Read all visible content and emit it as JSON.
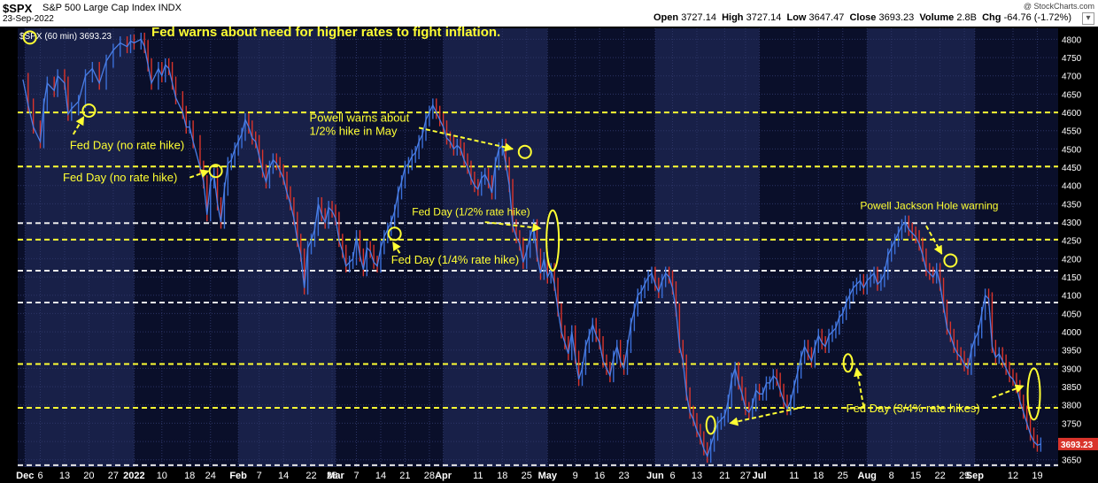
{
  "header": {
    "symbol": "$SPX",
    "name": "S&P 500 Large Cap Index  INDX",
    "date": "23-Sep-2022",
    "credit": "@ StockCharts.com",
    "open_label": "Open",
    "open": "3727.14",
    "high_label": "High",
    "high": "3727.14",
    "low_label": "Low",
    "low": "3647.47",
    "close_label": "Close",
    "close": "3693.23",
    "volume_label": "Volume",
    "volume": "2.8B",
    "chg_label": "Chg",
    "chg": "-64.76 (-1.72%)",
    "menu_icon": "dropdown-arrow-icon"
  },
  "chart_data": {
    "type": "line",
    "series_label": "$SPX (60 min) 3693.23",
    "last_value_label": "3693.23",
    "ylim": [
      3630,
      4830
    ],
    "y_ticks": [
      3650,
      3700,
      3750,
      3800,
      3850,
      3900,
      3950,
      4000,
      4050,
      4100,
      4150,
      4200,
      4250,
      4300,
      4350,
      4400,
      4450,
      4500,
      4550,
      4600,
      4650,
      4700,
      4750,
      4800
    ],
    "x_ticks": [
      {
        "label": "Dec",
        "t": 0.6,
        "bold": true
      },
      {
        "label": "6",
        "t": 5
      },
      {
        "label": "13",
        "t": 12
      },
      {
        "label": "20",
        "t": 19
      },
      {
        "label": "27",
        "t": 26
      },
      {
        "label": "2022",
        "t": 32,
        "bold": true
      },
      {
        "label": "10",
        "t": 40
      },
      {
        "label": "18",
        "t": 48
      },
      {
        "label": "24",
        "t": 54
      },
      {
        "label": "Feb",
        "t": 62,
        "bold": true
      },
      {
        "label": "7",
        "t": 68
      },
      {
        "label": "14",
        "t": 75
      },
      {
        "label": "22",
        "t": 83
      },
      {
        "label": "28",
        "t": 89
      },
      {
        "label": "Mar",
        "t": 90,
        "bold": true
      },
      {
        "label": "7",
        "t": 96
      },
      {
        "label": "14",
        "t": 103
      },
      {
        "label": "21",
        "t": 110
      },
      {
        "label": "28",
        "t": 117
      },
      {
        "label": "Apr",
        "t": 121,
        "bold": true
      },
      {
        "label": "11",
        "t": 131
      },
      {
        "label": "18",
        "t": 138
      },
      {
        "label": "25",
        "t": 145
      },
      {
        "label": "May",
        "t": 151,
        "bold": true
      },
      {
        "label": "9",
        "t": 159
      },
      {
        "label": "16",
        "t": 166
      },
      {
        "label": "23",
        "t": 173
      },
      {
        "label": "Jun",
        "t": 182,
        "bold": true
      },
      {
        "label": "6",
        "t": 187
      },
      {
        "label": "13",
        "t": 194
      },
      {
        "label": "21",
        "t": 202
      },
      {
        "label": "27",
        "t": 208
      },
      {
        "label": "Jul",
        "t": 212,
        "bold": true
      },
      {
        "label": "11",
        "t": 222
      },
      {
        "label": "18",
        "t": 229
      },
      {
        "label": "25",
        "t": 236
      },
      {
        "label": "Aug",
        "t": 243,
        "bold": true
      },
      {
        "label": "8",
        "t": 250
      },
      {
        "label": "15",
        "t": 257
      },
      {
        "label": "22",
        "t": 264
      },
      {
        "label": "29",
        "t": 271
      },
      {
        "label": "Sep",
        "t": 274,
        "bold": true
      },
      {
        "label": "12",
        "t": 285
      },
      {
        "label": "19",
        "t": 292
      }
    ],
    "t_range": [
      -1.5,
      298
    ],
    "month_bands": [
      [
        0.6,
        32
      ],
      [
        62,
        90
      ],
      [
        121,
        151
      ],
      [
        182,
        212
      ],
      [
        243,
        274
      ]
    ],
    "hlines": [
      4600,
      4452,
      4297,
      4252,
      4167,
      4080,
      3912,
      3792,
      3635
    ],
    "points": [
      [
        0,
        4690
      ],
      [
        1.5,
        4620
      ],
      [
        3,
        4560
      ],
      [
        5,
        4520
      ],
      [
        6,
        4620
      ],
      [
        7,
        4680
      ],
      [
        9,
        4660
      ],
      [
        10,
        4700
      ],
      [
        12,
        4680
      ],
      [
        13,
        4595
      ],
      [
        14,
        4610
      ],
      [
        16,
        4630
      ],
      [
        18,
        4700
      ],
      [
        20,
        4720
      ],
      [
        22,
        4680
      ],
      [
        24,
        4740
      ],
      [
        26,
        4770
      ],
      [
        28,
        4790
      ],
      [
        30,
        4780
      ],
      [
        31,
        4795
      ],
      [
        32,
        4790
      ],
      [
        34,
        4800
      ],
      [
        35,
        4780
      ],
      [
        36,
        4730
      ],
      [
        37,
        4680
      ],
      [
        39,
        4720
      ],
      [
        40,
        4700
      ],
      [
        41,
        4730
      ],
      [
        42,
        4720
      ],
      [
        43,
        4680
      ],
      [
        44,
        4640
      ],
      [
        46,
        4600
      ],
      [
        47,
        4560
      ],
      [
        48,
        4560
      ],
      [
        49,
        4520
      ],
      [
        51,
        4450
      ],
      [
        52,
        4410
      ],
      [
        53,
        4320
      ],
      [
        54,
        4410
      ],
      [
        55,
        4430
      ],
      [
        56,
        4350
      ],
      [
        57,
        4300
      ],
      [
        58,
        4390
      ],
      [
        59,
        4460
      ],
      [
        60,
        4470
      ],
      [
        61,
        4500
      ],
      [
        62,
        4520
      ],
      [
        63,
        4540
      ],
      [
        64,
        4580
      ],
      [
        65,
        4560
      ],
      [
        66,
        4530
      ],
      [
        67,
        4520
      ],
      [
        68,
        4480
      ],
      [
        69,
        4440
      ],
      [
        70,
        4410
      ],
      [
        71,
        4450
      ],
      [
        72,
        4470
      ],
      [
        73,
        4460
      ],
      [
        74,
        4440
      ],
      [
        75,
        4420
      ],
      [
        76,
        4380
      ],
      [
        77,
        4350
      ],
      [
        78,
        4310
      ],
      [
        79,
        4250
      ],
      [
        80,
        4210
      ],
      [
        81,
        4120
      ],
      [
        82,
        4230
      ],
      [
        83,
        4250
      ],
      [
        84,
        4280
      ],
      [
        85,
        4350
      ],
      [
        86,
        4320
      ],
      [
        87,
        4300
      ],
      [
        88,
        4340
      ],
      [
        89,
        4330
      ],
      [
        90,
        4310
      ],
      [
        91,
        4250
      ],
      [
        92,
        4220
      ],
      [
        93,
        4180
      ],
      [
        94,
        4190
      ],
      [
        95,
        4200
      ],
      [
        96,
        4260
      ],
      [
        97,
        4210
      ],
      [
        98,
        4170
      ],
      [
        99,
        4230
      ],
      [
        100,
        4220
      ],
      [
        101,
        4190
      ],
      [
        102,
        4180
      ],
      [
        103,
        4230
      ],
      [
        104,
        4260
      ],
      [
        105,
        4280
      ],
      [
        106,
        4300
      ],
      [
        107,
        4330
      ],
      [
        108,
        4380
      ],
      [
        109,
        4410
      ],
      [
        110,
        4450
      ],
      [
        111,
        4460
      ],
      [
        112,
        4480
      ],
      [
        113,
        4490
      ],
      [
        114,
        4520
      ],
      [
        115,
        4540
      ],
      [
        116,
        4580
      ],
      [
        117,
        4600
      ],
      [
        118,
        4620
      ],
      [
        119,
        4600
      ],
      [
        120,
        4580
      ],
      [
        121,
        4560
      ],
      [
        122,
        4530
      ],
      [
        123,
        4520
      ],
      [
        124,
        4500
      ],
      [
        125,
        4510
      ],
      [
        126,
        4500
      ],
      [
        127,
        4470
      ],
      [
        128,
        4450
      ],
      [
        129,
        4420
      ],
      [
        130,
        4400
      ],
      [
        131,
        4390
      ],
      [
        132,
        4420
      ],
      [
        133,
        4430
      ],
      [
        134,
        4410
      ],
      [
        135,
        4380
      ],
      [
        136,
        4460
      ],
      [
        137,
        4500
      ],
      [
        138,
        4510
      ],
      [
        139,
        4460
      ],
      [
        140,
        4400
      ],
      [
        141,
        4290
      ],
      [
        142,
        4260
      ],
      [
        143,
        4240
      ],
      [
        144,
        4190
      ],
      [
        145,
        4220
      ],
      [
        146,
        4260
      ],
      [
        147,
        4290
      ],
      [
        148,
        4210
      ],
      [
        149,
        4160
      ],
      [
        150,
        4200
      ],
      [
        151,
        4150
      ],
      [
        152,
        4170
      ],
      [
        153,
        4130
      ],
      [
        154,
        4060
      ],
      [
        155,
        4000
      ],
      [
        156,
        3970
      ],
      [
        157,
        3940
      ],
      [
        158,
        4000
      ],
      [
        159,
        3930
      ],
      [
        160,
        3870
      ],
      [
        161,
        3900
      ],
      [
        162,
        3960
      ],
      [
        163,
        3990
      ],
      [
        164,
        4020
      ],
      [
        165,
        3990
      ],
      [
        166,
        3970
      ],
      [
        167,
        3920
      ],
      [
        168,
        3900
      ],
      [
        169,
        3880
      ],
      [
        170,
        3930
      ],
      [
        171,
        3960
      ],
      [
        172,
        3920
      ],
      [
        173,
        3900
      ],
      [
        174,
        3960
      ],
      [
        175,
        4020
      ],
      [
        176,
        4060
      ],
      [
        177,
        4100
      ],
      [
        178,
        4110
      ],
      [
        179,
        4130
      ],
      [
        180,
        4150
      ],
      [
        181,
        4160
      ],
      [
        182,
        4130
      ],
      [
        183,
        4110
      ],
      [
        184,
        4140
      ],
      [
        185,
        4160
      ],
      [
        186,
        4150
      ],
      [
        187,
        4120
      ],
      [
        188,
        4060
      ],
      [
        189,
        3960
      ],
      [
        190,
        3920
      ],
      [
        191,
        3830
      ],
      [
        192,
        3780
      ],
      [
        193,
        3760
      ],
      [
        194,
        3730
      ],
      [
        195,
        3710
      ],
      [
        196,
        3680
      ],
      [
        197,
        3660
      ],
      [
        198,
        3690
      ],
      [
        199,
        3720
      ],
      [
        200,
        3750
      ],
      [
        201,
        3760
      ],
      [
        202,
        3770
      ],
      [
        203,
        3810
      ],
      [
        204,
        3870
      ],
      [
        205,
        3900
      ],
      [
        206,
        3860
      ],
      [
        207,
        3830
      ],
      [
        208,
        3790
      ],
      [
        209,
        3780
      ],
      [
        210,
        3800
      ],
      [
        211,
        3840
      ],
      [
        212,
        3830
      ],
      [
        213,
        3830
      ],
      [
        214,
        3860
      ],
      [
        215,
        3860
      ],
      [
        216,
        3880
      ],
      [
        217,
        3870
      ],
      [
        218,
        3840
      ],
      [
        219,
        3810
      ],
      [
        220,
        3790
      ],
      [
        221,
        3810
      ],
      [
        222,
        3850
      ],
      [
        223,
        3890
      ],
      [
        224,
        3930
      ],
      [
        225,
        3960
      ],
      [
        226,
        3940
      ],
      [
        227,
        3920
      ],
      [
        228,
        3960
      ],
      [
        229,
        3990
      ],
      [
        230,
        3970
      ],
      [
        231,
        3960
      ],
      [
        232,
        3990
      ],
      [
        233,
        4000
      ],
      [
        234,
        4010
      ],
      [
        235,
        4040
      ],
      [
        236,
        4050
      ],
      [
        237,
        4080
      ],
      [
        238,
        4100
      ],
      [
        239,
        4120
      ],
      [
        240,
        4130
      ],
      [
        241,
        4140
      ],
      [
        242,
        4120
      ],
      [
        243,
        4140
      ],
      [
        244,
        4150
      ],
      [
        245,
        4160
      ],
      [
        246,
        4130
      ],
      [
        247,
        4140
      ],
      [
        248,
        4160
      ],
      [
        249,
        4210
      ],
      [
        250,
        4230
      ],
      [
        251,
        4250
      ],
      [
        252,
        4270
      ],
      [
        253,
        4290
      ],
      [
        254,
        4300
      ],
      [
        255,
        4280
      ],
      [
        256,
        4270
      ],
      [
        257,
        4260
      ],
      [
        258,
        4240
      ],
      [
        259,
        4210
      ],
      [
        260,
        4170
      ],
      [
        261,
        4160
      ],
      [
        262,
        4150
      ],
      [
        263,
        4170
      ],
      [
        264,
        4130
      ],
      [
        265,
        4070
      ],
      [
        266,
        4010
      ],
      [
        267,
        3990
      ],
      [
        268,
        3960
      ],
      [
        269,
        3940
      ],
      [
        270,
        3930
      ],
      [
        271,
        3910
      ],
      [
        272,
        3900
      ],
      [
        273,
        3950
      ],
      [
        274,
        3980
      ],
      [
        275,
        4000
      ],
      [
        276,
        4050
      ],
      [
        277,
        4100
      ],
      [
        278,
        4090
      ],
      [
        279,
        3960
      ],
      [
        280,
        3930
      ],
      [
        281,
        3940
      ],
      [
        282,
        3920
      ],
      [
        283,
        3900
      ],
      [
        284,
        3880
      ],
      [
        285,
        3870
      ],
      [
        286,
        3850
      ],
      [
        287,
        3810
      ],
      [
        288,
        3780
      ],
      [
        289,
        3750
      ],
      [
        290,
        3720
      ],
      [
        291,
        3700
      ],
      [
        292,
        3690
      ],
      [
        293,
        3693
      ]
    ],
    "annotations": [
      {
        "id": "ann-fed-warns",
        "text": "Fed warns about need for higher rates to fight inflation.",
        "t": 37,
        "v": 4808,
        "size": 15,
        "bold": true,
        "color": "#ffff33"
      },
      {
        "id": "ann-fed-day-1",
        "text": "Fed Day (no rate hike)",
        "t": 13.5,
        "v": 4500,
        "size": 13,
        "bold": false,
        "color": "#ffff33"
      },
      {
        "id": "ann-fed-day-2",
        "text": "Fed Day (no rate hike)",
        "t": 11.5,
        "v": 4412,
        "size": 13,
        "bold": false,
        "color": "#ffff33"
      },
      {
        "id": "ann-powell-1",
        "text": "Powell warns about",
        "t": 82.5,
        "v": 4575,
        "size": 13,
        "bold": false,
        "color": "#ffff33"
      },
      {
        "id": "ann-powell-2",
        "text": "1/2% hike in May",
        "t": 82.5,
        "v": 4538,
        "size": 13,
        "bold": false,
        "color": "#ffff33"
      },
      {
        "id": "ann-fed-half",
        "text": "Fed Day (1/2% rate hike)",
        "t": 112,
        "v": 4318,
        "size": 12,
        "bold": false,
        "color": "#ffff33"
      },
      {
        "id": "ann-fed-quarter",
        "text": "Fed Day (1/4% rate hike)",
        "t": 106,
        "v": 4187,
        "size": 13,
        "bold": false,
        "color": "#ffff33"
      },
      {
        "id": "ann-jackson-hole",
        "text": "Powell Jackson Hole warning",
        "t": 241,
        "v": 4335,
        "size": 12,
        "bold": false,
        "color": "#ffff33"
      },
      {
        "id": "ann-three-quarter",
        "text": "Fed Day (3/4% rate hikes)",
        "t": 237,
        "v": 3780,
        "size": 13,
        "bold": false,
        "color": "#ffff33"
      }
    ],
    "circles": [
      [
        19,
        4605
      ],
      [
        55.5,
        4440
      ],
      [
        107,
        4268
      ],
      [
        144.5,
        4492
      ],
      [
        267,
        4195
      ],
      [
        2,
        4805
      ]
    ],
    "tall_ovals": [
      [
        152.5,
        4250,
        4.3,
        8,
        "tall"
      ],
      [
        198,
        3745,
        2,
        3,
        "small"
      ],
      [
        237.5,
        3915,
        2,
        3,
        "small"
      ],
      [
        291,
        3830,
        1.4,
        3,
        "tall2"
      ]
    ],
    "arrows": [
      [
        14.5,
        4540,
        17.5,
        4588
      ],
      [
        48,
        4422,
        53.5,
        4440
      ],
      [
        108.5,
        4215,
        106.5,
        4245
      ],
      [
        114,
        4558,
        141,
        4500
      ],
      [
        133,
        4300,
        149,
        4283
      ],
      [
        260,
        4290,
        264.5,
        4213
      ],
      [
        225,
        3795,
        203.5,
        3750
      ],
      [
        242,
        3795,
        240,
        3900
      ],
      [
        279,
        3820,
        288,
        3852
      ]
    ]
  }
}
